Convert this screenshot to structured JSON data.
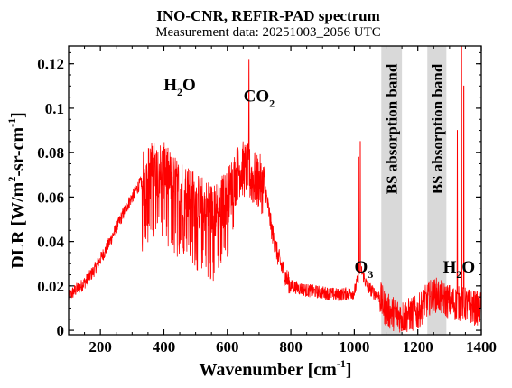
{
  "chart_data": {
    "type": "line",
    "title": "INO-CNR, REFIR-PAD spectrum",
    "subtitle": "Measurement data: 20251003_2056 UTC",
    "xlabel": {
      "main": "Wavenumber [cm",
      "sup": "-1",
      "end": "]"
    },
    "ylabel": {
      "main": "DLR [W/m",
      "sup": "2",
      "end": "-sr-cm",
      "sup2": "-1",
      "close": "]"
    },
    "xlim": [
      100,
      1400
    ],
    "ylim": [
      -0.002,
      0.128
    ],
    "xticks": [
      200,
      400,
      600,
      800,
      1000,
      1200,
      1400
    ],
    "yticks": [
      0,
      0.02,
      0.04,
      0.06,
      0.08,
      0.1,
      0.12
    ],
    "xtick_labels": [
      "200",
      "400",
      "600",
      "800",
      "1000",
      "1200",
      "1400"
    ],
    "ytick_labels": [
      "0",
      "0.02",
      "0.04",
      "0.06",
      "0.08",
      "0.1",
      "0.12"
    ],
    "line_color": "#ff0000",
    "band_color": "#d9d9d9",
    "bands": [
      {
        "x0": 1085,
        "x1": 1150,
        "label": "BS absorption band"
      },
      {
        "x0": 1230,
        "x1": 1290,
        "label": "BS absorption band"
      }
    ],
    "annotations": [
      {
        "parts": [
          {
            "t": "H"
          },
          {
            "t": "2",
            "sub": true
          },
          {
            "t": "O"
          }
        ],
        "x": 450,
        "y": 0.108
      },
      {
        "parts": [
          {
            "t": "CO"
          },
          {
            "t": "2",
            "sub": true
          }
        ],
        "x": 700,
        "y": 0.103
      },
      {
        "parts": [
          {
            "t": "O"
          },
          {
            "t": "3",
            "sub": true
          }
        ],
        "x": 1030,
        "y": 0.026
      },
      {
        "parts": [
          {
            "t": "H"
          },
          {
            "t": "2",
            "sub": true
          },
          {
            "t": "O"
          }
        ],
        "x": 1330,
        "y": 0.026
      }
    ],
    "series": [
      {
        "x": [
          100,
          120,
          140,
          160,
          180,
          200,
          220,
          240,
          260,
          280,
          300,
          320,
          340,
          360,
          380,
          400,
          420,
          440,
          460,
          480,
          500,
          520,
          540,
          560,
          580,
          600,
          620,
          640,
          660,
          670,
          680,
          700,
          720,
          740,
          760,
          780,
          800,
          850,
          900,
          950,
          1000,
          1020,
          1040,
          1060,
          1080,
          1090,
          1100,
          1150,
          1200,
          1220,
          1240,
          1260,
          1280,
          1300,
          1320,
          1340,
          1360,
          1380,
          1400
        ],
        "y": [
          0.015,
          0.018,
          0.02,
          0.023,
          0.027,
          0.032,
          0.037,
          0.043,
          0.049,
          0.055,
          0.06,
          0.065,
          0.069,
          0.072,
          0.073,
          0.072,
          0.068,
          0.065,
          0.063,
          0.062,
          0.058,
          0.057,
          0.055,
          0.053,
          0.057,
          0.06,
          0.067,
          0.073,
          0.072,
          0.07,
          0.068,
          0.067,
          0.063,
          0.045,
          0.033,
          0.025,
          0.02,
          0.018,
          0.017,
          0.016,
          0.017,
          0.028,
          0.02,
          0.017,
          0.015,
          0.012,
          0.009,
          0.006,
          0.008,
          0.012,
          0.015,
          0.016,
          0.014,
          0.013,
          0.012,
          0.012,
          0.011,
          0.01,
          0.01
        ]
      }
    ]
  }
}
